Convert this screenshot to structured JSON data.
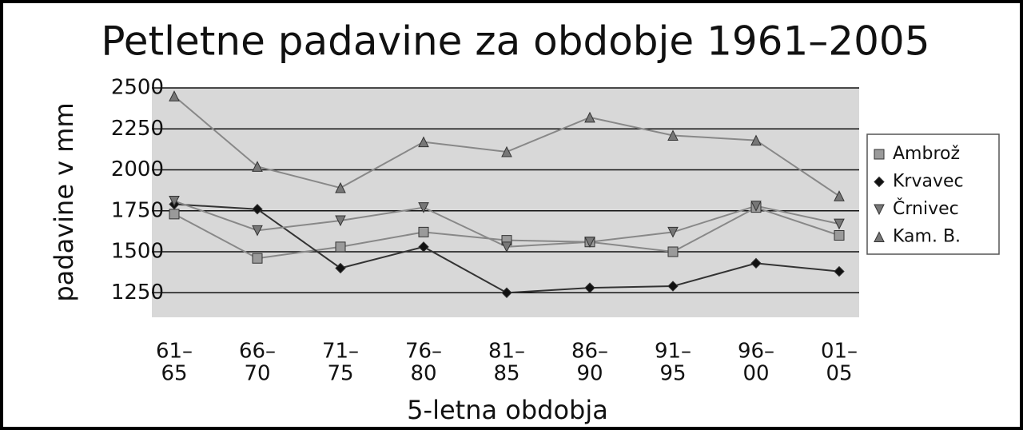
{
  "chart_data": {
    "type": "line",
    "title": "Petletne padavine za obdobje 1961–2005",
    "y_label": "padavine v mm",
    "x_label": "5-letna obdobja",
    "categories": [
      [
        "61–",
        "65"
      ],
      [
        "66–",
        "70"
      ],
      [
        "71–",
        "75"
      ],
      [
        "76–",
        "80"
      ],
      [
        "81–",
        "85"
      ],
      [
        "86–",
        "90"
      ],
      [
        "91–",
        "95"
      ],
      [
        "96–",
        "00"
      ],
      [
        "01–",
        "05"
      ]
    ],
    "ylim": [
      1100,
      2500
    ],
    "yticks": [
      1250,
      1500,
      1750,
      2000,
      2250,
      2500
    ],
    "grid": true,
    "legend": "right",
    "series": [
      {
        "name": "Ambrož",
        "color": "#9a9a9a",
        "marker": "square",
        "values": [
          1730,
          1460,
          1530,
          1620,
          1570,
          1560,
          1500,
          1770,
          1600
        ]
      },
      {
        "name": "Krvavec",
        "color": "#111111",
        "marker": "diamond",
        "values": [
          1790,
          1760,
          1400,
          1530,
          1250,
          1280,
          1290,
          1430,
          1380
        ]
      },
      {
        "name": "Črnivec",
        "color": "#777777",
        "marker": "triangle-down",
        "values": [
          1810,
          1630,
          1690,
          1770,
          1530,
          1560,
          1620,
          1780,
          1670
        ]
      },
      {
        "name": "Kam. B.",
        "color": "#777777",
        "marker": "triangle-up",
        "values": [
          2450,
          2020,
          1890,
          2170,
          2110,
          2320,
          2210,
          2180,
          1840
        ]
      }
    ]
  }
}
